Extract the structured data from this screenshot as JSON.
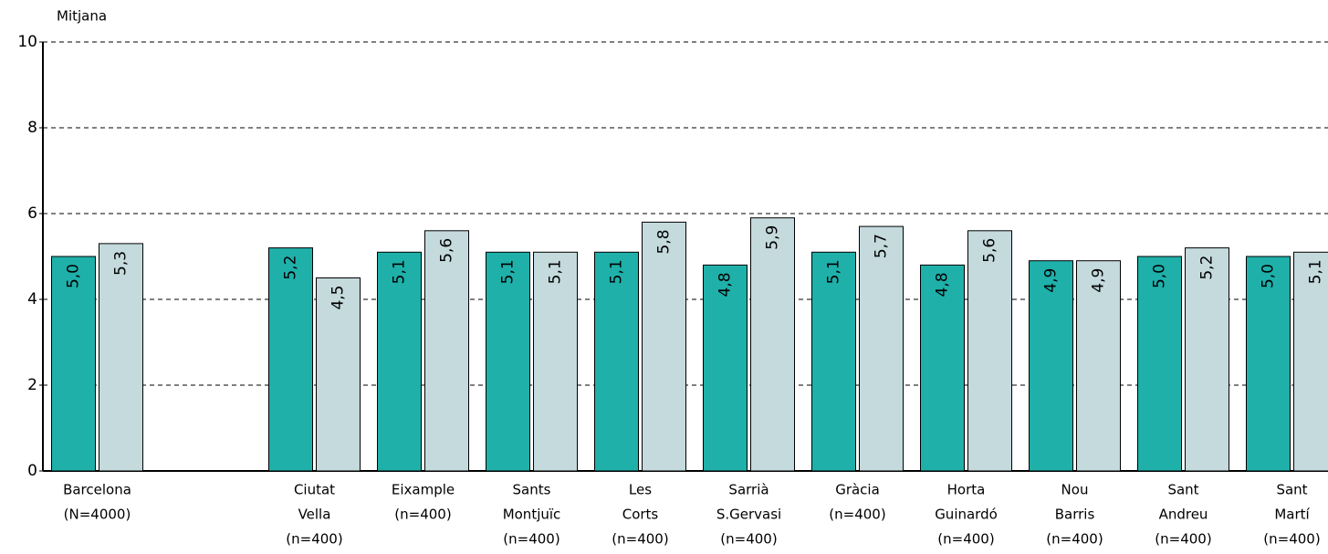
{
  "chart_data": {
    "type": "bar",
    "y_label": "Mitjana",
    "categories": [
      [
        "Barcelona",
        "(N=4000)"
      ],
      null,
      [
        "Ciutat",
        "Vella",
        "(n=400)"
      ],
      [
        "Eixample",
        "(n=400)"
      ],
      [
        "Sants",
        "Montjuïc",
        "(n=400)"
      ],
      [
        "Les",
        "Corts",
        "(n=400)"
      ],
      [
        "Sarrià",
        "S.Gervasi",
        "(n=400)"
      ],
      [
        "Gràcia",
        "(n=400)"
      ],
      [
        "Horta",
        "Guinardó",
        "(n=400)"
      ],
      [
        "Nou",
        "Barris",
        "(n=400)"
      ],
      [
        "Sant",
        "Andreu",
        "(n=400)"
      ],
      [
        "Sant",
        "Martí",
        "(n=400)"
      ]
    ],
    "series": [
      {
        "color": "#1fb0aa",
        "values": [
          5.0,
          null,
          5.2,
          5.1,
          5.1,
          5.1,
          4.8,
          5.1,
          4.8,
          4.9,
          5.0,
          5.0
        ],
        "value_labels": [
          "5,0",
          null,
          "5,2",
          "5,1",
          "5,1",
          "5,1",
          "4,8",
          "5,1",
          "4,8",
          "4,9",
          "5,0",
          "5,0"
        ]
      },
      {
        "color": "#c4dadd",
        "values": [
          5.3,
          null,
          4.5,
          5.6,
          5.1,
          5.8,
          5.9,
          5.7,
          5.6,
          4.9,
          5.2,
          5.1
        ],
        "value_labels": [
          "5,3",
          null,
          "4,5",
          "5,6",
          "5,1",
          "5,8",
          "5,9",
          "5,7",
          "5,6",
          "4,9",
          "5,2",
          "5,1"
        ]
      }
    ],
    "ylim": [
      0,
      10
    ],
    "yticks": [
      0,
      2,
      4,
      6,
      8,
      10
    ],
    "grid": true
  }
}
